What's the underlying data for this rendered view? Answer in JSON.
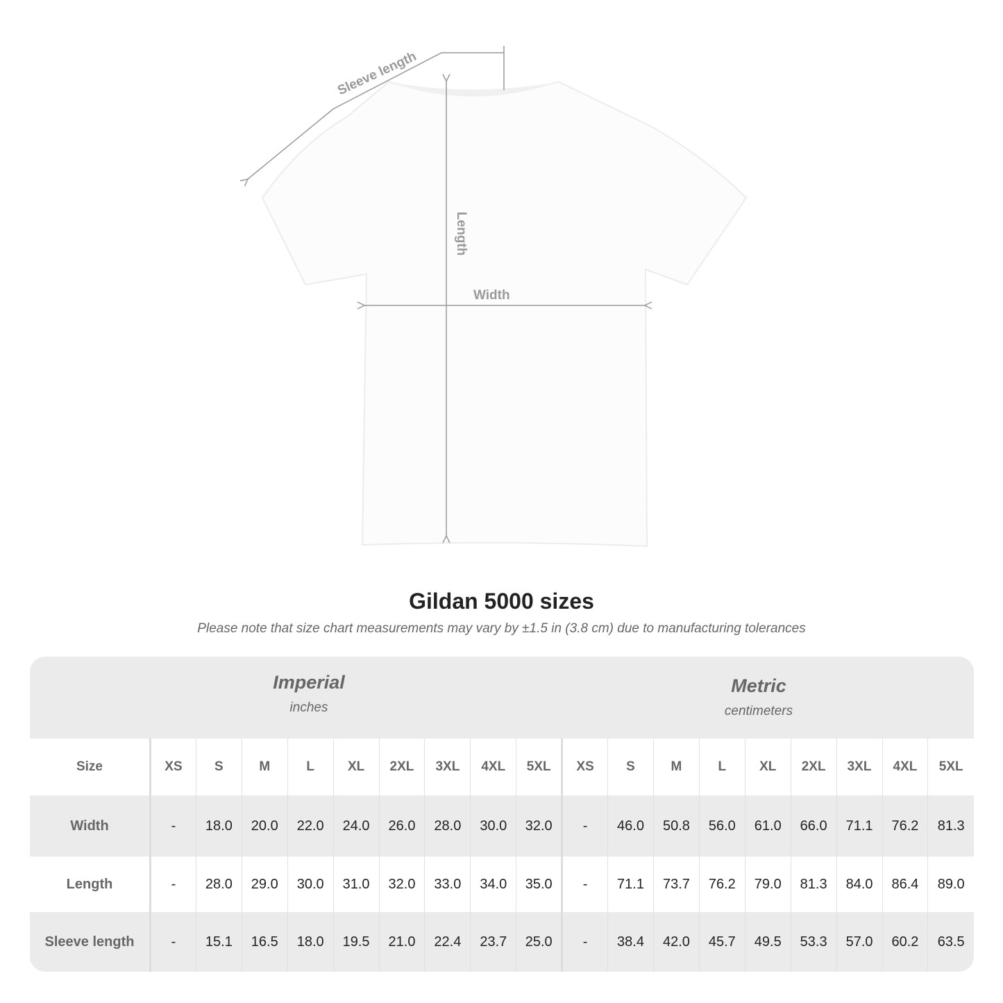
{
  "diagram": {
    "sleeve_label": "Sleeve length",
    "length_label": "Length",
    "width_label": "Width",
    "line_color": "#999999"
  },
  "title": "Gildan 5000 sizes",
  "note": "Please note that size chart measurements may vary by ±1.5 in (3.8 cm) due to manufacturing tolerances",
  "table": {
    "imperial": {
      "name": "Imperial",
      "unit": "inches"
    },
    "metric": {
      "name": "Metric",
      "unit": "centimeters"
    },
    "size_label": "Size",
    "sizes": [
      "XS",
      "S",
      "M",
      "L",
      "XL",
      "2XL",
      "3XL",
      "4XL",
      "5XL"
    ],
    "rows": [
      {
        "label": "Width",
        "imperial": [
          "-",
          "18.0",
          "20.0",
          "22.0",
          "24.0",
          "26.0",
          "28.0",
          "30.0",
          "32.0"
        ],
        "metric": [
          "-",
          "46.0",
          "50.8",
          "56.0",
          "61.0",
          "66.0",
          "71.1",
          "76.2",
          "81.3"
        ]
      },
      {
        "label": "Length",
        "imperial": [
          "-",
          "28.0",
          "29.0",
          "30.0",
          "31.0",
          "32.0",
          "33.0",
          "34.0",
          "35.0"
        ],
        "metric": [
          "-",
          "71.1",
          "73.7",
          "76.2",
          "79.0",
          "81.3",
          "84.0",
          "86.4",
          "89.0"
        ]
      },
      {
        "label": "Sleeve length",
        "imperial": [
          "-",
          "15.1",
          "16.5",
          "18.0",
          "19.5",
          "21.0",
          "22.4",
          "23.7",
          "25.0"
        ],
        "metric": [
          "-",
          "38.4",
          "42.0",
          "45.7",
          "49.5",
          "53.3",
          "57.0",
          "60.2",
          "63.5"
        ]
      }
    ]
  }
}
